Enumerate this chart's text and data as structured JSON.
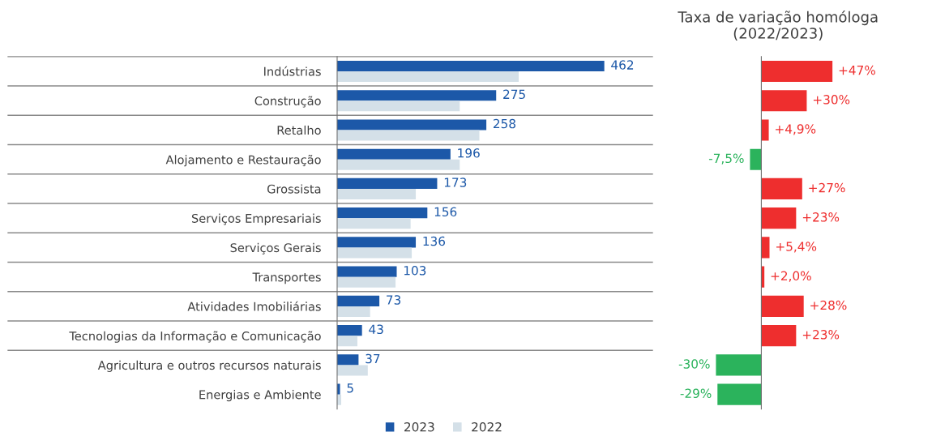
{
  "chart_data": [
    {
      "type": "bar",
      "orientation": "horizontal",
      "tick_labels": "y",
      "grid": "y",
      "legend": "bottom",
      "categories": [
        "Indústrias",
        "Construção",
        "Retalho",
        "Alojamento e Restauração",
        "Grossista",
        "Serviços Empresariais",
        "Serviços Gerais",
        "Transportes",
        "Atividades Imobiliárias",
        "Tecnologias da Informação e Comunicação",
        "Agricultura e outros recursos naturais",
        "Energias e Ambiente"
      ],
      "series": [
        {
          "name": "2023",
          "color": "#1c58a8",
          "values": [
            462,
            275,
            258,
            196,
            173,
            156,
            136,
            103,
            73,
            43,
            37,
            5
          ],
          "value_labels": [
            "462",
            "275",
            "258",
            "196",
            "173",
            "156",
            "136",
            "103",
            "73",
            "43",
            "37",
            "5"
          ]
        },
        {
          "name": "2022",
          "color": "#d4e0e8",
          "values": [
            314,
            212,
            246,
            212,
            136,
            127,
            129,
            101,
            57,
            35,
            53,
            7
          ]
        }
      ]
    },
    {
      "type": "bar",
      "orientation": "horizontal",
      "tick_labels": false,
      "title": "Taxa de variação homóloga\n(2022/2023)",
      "values": [
        47,
        30,
        4.9,
        -7.5,
        27,
        23,
        5.4,
        2.0,
        28,
        23,
        -30,
        -29
      ],
      "value_labels": [
        "+47%",
        "+30%",
        "+4,9%",
        "-7,5%",
        "+27%",
        "+23%",
        "+5,4%",
        "+2,0%",
        "+28%",
        "+23%",
        "-30%",
        "-29%"
      ],
      "colors": [
        "#ee2e2e",
        "#ee2e2e",
        "#ee2e2e",
        "#2bb35c",
        "#ee2e2e",
        "#ee2e2e",
        "#ee2e2e",
        "#ee2e2e",
        "#ee2e2e",
        "#ee2e2e",
        "#2bb35c",
        "#2bb35c"
      ]
    }
  ]
}
